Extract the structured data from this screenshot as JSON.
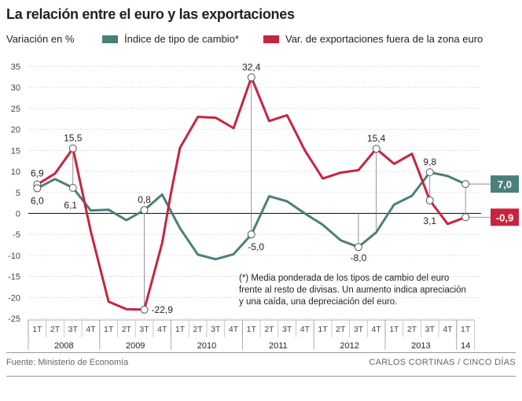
{
  "title": "La relación entre el euro y las exportaciones",
  "colors": {
    "series_teal": "#4b7f7a",
    "series_red": "#c8243f",
    "axis": "#231f20",
    "grid": "#bcbcbc"
  },
  "chart_data": {
    "type": "line",
    "title": "La relación entre el euro y las exportaciones",
    "ylabel": "Variación en %",
    "xlabel": "",
    "ylim": [
      -25,
      35
    ],
    "yticks": [
      35,
      30,
      25,
      20,
      15,
      10,
      5,
      0,
      -5,
      -10,
      -15,
      -20,
      -25
    ],
    "quarters": [
      "1T",
      "2T",
      "3T",
      "4T",
      "1T",
      "2T",
      "3T",
      "4T",
      "1T",
      "2T",
      "3T",
      "4T",
      "1T",
      "2T",
      "3T",
      "4T",
      "1T",
      "2T",
      "3T",
      "4T",
      "1T",
      "2T",
      "3T",
      "4T",
      "1T"
    ],
    "years": [
      {
        "label": "2008",
        "start": 0,
        "span": 4
      },
      {
        "label": "2009",
        "start": 4,
        "span": 4
      },
      {
        "label": "2010",
        "start": 8,
        "span": 4
      },
      {
        "label": "2011",
        "start": 12,
        "span": 4
      },
      {
        "label": "2012",
        "start": 16,
        "span": 4
      },
      {
        "label": "2013",
        "start": 20,
        "span": 4
      },
      {
        "label": "14",
        "start": 24,
        "span": 1
      }
    ],
    "series": [
      {
        "name": "Índice de tipo de cambio*",
        "color": "#4b7f7a",
        "x": [
          0.5,
          1.5,
          2.5,
          3.5,
          4.5,
          5.5,
          6.5,
          7.5,
          8.5,
          9.5,
          10.5,
          11.5,
          12.5,
          13.5,
          14.5,
          15.5,
          16.5,
          17.5,
          18.5,
          19.5,
          20.5,
          21.5,
          22.5,
          23.5,
          24.5
        ],
        "values": [
          6.0,
          8.2,
          6.1,
          0.7,
          0.9,
          -1.6,
          0.8,
          4.5,
          -3.5,
          -9.8,
          -10.9,
          -9.7,
          -5.0,
          4.1,
          2.9,
          0.0,
          -2.7,
          -6.4,
          -8.0,
          -4.5,
          2.1,
          4.2,
          9.8,
          8.9,
          7.0
        ]
      },
      {
        "name": "Var. de exportaciones fuera de la zona euro",
        "color": "#c8243f",
        "x": [
          0.5,
          1.5,
          2.5,
          3.5,
          4.5,
          5.5,
          6.5,
          7.5,
          8.0,
          8.5,
          9.5,
          10.5,
          11.5,
          12.5,
          13.5,
          14.5,
          15.5,
          16.5,
          17.5,
          18.5,
          19.5,
          20.5,
          21.5,
          22.5,
          23.5,
          24.5
        ],
        "values": [
          6.9,
          9.5,
          15.5,
          -4.3,
          -21.0,
          -22.8,
          -22.9,
          -7.0,
          5.0,
          15.6,
          23.0,
          22.8,
          20.3,
          32.4,
          22.0,
          23.4,
          15.0,
          8.3,
          9.7,
          10.3,
          15.4,
          11.8,
          14.2,
          3.1,
          -2.5,
          -0.9
        ]
      }
    ],
    "annotations": [
      {
        "text": "6,9",
        "xq": 0.5,
        "y": 6.9,
        "series": "red",
        "stem": false,
        "pos": "above"
      },
      {
        "text": "6,0",
        "xq": 0.5,
        "y": 6.0,
        "series": "teal",
        "stem": false,
        "pos": "below"
      },
      {
        "text": "15,5",
        "xq": 2.5,
        "y": 15.5,
        "series": "red",
        "stem": false,
        "pos": "above"
      },
      {
        "text": "6,1",
        "xq": 2.5,
        "y": 6.1,
        "series": "teal",
        "stem": false,
        "pos": "belowleft"
      },
      {
        "text": "0,8",
        "xq": 6.5,
        "y": 0.8,
        "series": "teal",
        "stem": false,
        "pos": "above"
      },
      {
        "text": "-22,9",
        "xq": 6.5,
        "y": -22.9,
        "series": "red",
        "stem": false,
        "pos": "right"
      },
      {
        "text": "32,4",
        "xq": 12.5,
        "y": 32.4,
        "series": "red",
        "stem": false,
        "pos": "above"
      },
      {
        "text": "-5,0",
        "xq": 12.5,
        "y": -5.0,
        "series": "teal",
        "stem": false,
        "pos": "belowright"
      },
      {
        "text": "15,4",
        "xq": 19.5,
        "y": 15.4,
        "series": "red",
        "stem": false,
        "pos": "above"
      },
      {
        "text": "-8,0",
        "xq": 18.5,
        "y": -8.0,
        "series": "teal",
        "stem": false,
        "pos": "below"
      },
      {
        "text": "9,8",
        "xq": 22.5,
        "y": 9.8,
        "series": "teal",
        "stem": false,
        "pos": "above"
      },
      {
        "text": "3,1",
        "xq": 22.5,
        "y": 3.1,
        "series": "red",
        "stem": false,
        "pos": "belowfar"
      }
    ],
    "end_labels": [
      {
        "text": "7,0",
        "y": 7.0,
        "series": "teal"
      },
      {
        "text": "-0,9",
        "y": -0.9,
        "series": "red"
      }
    ],
    "note": [
      "(*) Media ponderada de los tipos de cambio del euro",
      "frente al resto de divisas. Un aumento indica apreciación",
      "y una caída, una depreciación del euro."
    ]
  },
  "footer": {
    "source": "Fuente: Ministerio de Economía",
    "credit": "CARLOS CORTINAS / CINCO DÍAS"
  }
}
